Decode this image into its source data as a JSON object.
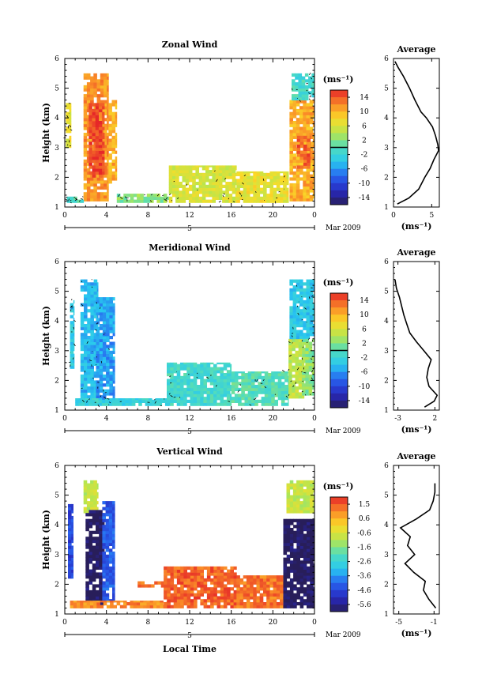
{
  "chart_data": [
    {
      "type": "heatmap",
      "title": "Zonal Wind",
      "ylabel": "Height (km)",
      "xticks": [
        "0",
        "4",
        "8",
        "12",
        "16",
        "20",
        "0"
      ],
      "yticks": [
        "1",
        "2",
        "3",
        "4",
        "5",
        "6"
      ],
      "ylim": [
        1,
        6
      ],
      "xlim": [
        0,
        24
      ],
      "date_label": "5",
      "month_label": "Mar 2009",
      "colorbar": {
        "unit": "(ms⁻¹)",
        "ticks": [
          "14",
          "10",
          "6",
          "2",
          "-2",
          "-6",
          "-10",
          "-14"
        ],
        "range": [
          -14,
          14
        ],
        "bar_value": 0
      },
      "zero_contour": true,
      "coverage": [
        {
          "t0": 0.1,
          "t1": 0.6,
          "z0": 3.0,
          "z1": 4.5,
          "v": 6
        },
        {
          "t0": 1.8,
          "t1": 4.2,
          "z0": 1.2,
          "z1": 5.5,
          "v": 10
        },
        {
          "t0": 2.3,
          "t1": 3.8,
          "z0": 2.0,
          "z1": 4.5,
          "v": 13
        },
        {
          "t0": 4.2,
          "t1": 5.0,
          "z0": 1.8,
          "z1": 4.6,
          "v": 9
        },
        {
          "t0": 0.2,
          "t1": 1.8,
          "z0": 1.15,
          "z1": 1.35,
          "v": 0
        },
        {
          "t0": 5.0,
          "t1": 10.0,
          "z0": 1.15,
          "z1": 1.45,
          "v": 2
        },
        {
          "t0": 10.0,
          "t1": 16.5,
          "z0": 1.15,
          "z1": 2.4,
          "v": 5
        },
        {
          "t0": 16.5,
          "t1": 21.5,
          "z0": 1.15,
          "z1": 2.2,
          "v": 6
        },
        {
          "t0": 21.6,
          "t1": 24.0,
          "z0": 1.2,
          "z1": 4.6,
          "v": 9
        },
        {
          "t0": 22.3,
          "t1": 23.6,
          "z0": 2.3,
          "z1": 3.4,
          "v": 12
        },
        {
          "t0": 21.8,
          "t1": 24.0,
          "z0": 4.6,
          "z1": 5.5,
          "v": -1
        }
      ],
      "profile": {
        "title": "Average",
        "xlabel": "(ms⁻¹)",
        "xticks": [
          "0",
          "5"
        ],
        "xlim": [
          0,
          6
        ],
        "z": [
          1.1,
          1.3,
          1.6,
          2.0,
          2.3,
          2.6,
          2.9,
          3.1,
          3.4,
          3.7,
          4.0,
          4.2,
          4.6,
          5.0,
          5.4,
          5.7,
          5.9
        ],
        "v": [
          0.5,
          2.0,
          3.3,
          4.1,
          4.8,
          5.3,
          5.9,
          5.8,
          5.5,
          5.1,
          4.3,
          3.6,
          2.8,
          2.1,
          1.3,
          0.6,
          0.2
        ]
      }
    },
    {
      "type": "heatmap",
      "title": "Meridional Wind",
      "ylabel": "Height (km)",
      "xticks": [
        "0",
        "4",
        "8",
        "12",
        "16",
        "20",
        "0"
      ],
      "yticks": [
        "1",
        "2",
        "3",
        "4",
        "5",
        "6"
      ],
      "ylim": [
        1,
        6
      ],
      "xlim": [
        0,
        24
      ],
      "date_label": "5",
      "month_label": "Mar 2009",
      "colorbar": {
        "unit": "(ms⁻¹)",
        "ticks": [
          "14",
          "10",
          "6",
          "2",
          "-2",
          "-6",
          "-10",
          "-14"
        ],
        "range": [
          -14,
          14
        ],
        "bar_value": 0
      },
      "zero_contour": true,
      "coverage": [
        {
          "t0": 0.5,
          "t1": 0.9,
          "z0": 2.4,
          "z1": 4.7,
          "v": -3
        },
        {
          "t0": 1.5,
          "t1": 3.2,
          "z0": 1.3,
          "z1": 5.4,
          "v": -4
        },
        {
          "t0": 3.0,
          "t1": 4.8,
          "z0": 1.3,
          "z1": 4.8,
          "v": -5
        },
        {
          "t0": 1.0,
          "t1": 10.0,
          "z0": 1.15,
          "z1": 1.4,
          "v": -2
        },
        {
          "t0": 9.8,
          "t1": 16.0,
          "z0": 1.15,
          "z1": 2.6,
          "v": -1
        },
        {
          "t0": 16.0,
          "t1": 21.5,
          "z0": 1.15,
          "z1": 2.3,
          "v": 0
        },
        {
          "t0": 21.5,
          "t1": 23.0,
          "z0": 1.4,
          "z1": 3.5,
          "v": 4
        },
        {
          "t0": 21.6,
          "t1": 24.0,
          "z0": 3.4,
          "z1": 5.4,
          "v": -3
        },
        {
          "t0": 22.8,
          "t1": 24.0,
          "z0": 1.5,
          "z1": 3.4,
          "v": 2
        }
      ],
      "profile": {
        "title": "Average",
        "xlabel": "(ms⁻¹)",
        "xticks": [
          "-3",
          "2"
        ],
        "xlim": [
          -3.6,
          2.6
        ],
        "z": [
          1.1,
          1.3,
          1.5,
          1.8,
          2.1,
          2.4,
          2.7,
          3.0,
          3.3,
          3.6,
          3.9,
          4.2,
          4.5,
          4.8,
          5.1,
          5.4
        ],
        "v": [
          0.6,
          1.9,
          2.3,
          1.2,
          0.9,
          1.1,
          1.5,
          0.5,
          -0.5,
          -1.4,
          -1.8,
          -2.2,
          -2.5,
          -2.8,
          -3.2,
          -3.4
        ]
      }
    },
    {
      "type": "heatmap",
      "title": "Vertical Wind",
      "ylabel": "Height (km)",
      "xlabel": "Local Time",
      "xticks": [
        "0",
        "4",
        "8",
        "12",
        "16",
        "20",
        "0"
      ],
      "yticks": [
        "1",
        "2",
        "3",
        "4",
        "5",
        "6"
      ],
      "ylim": [
        1,
        6
      ],
      "xlim": [
        0,
        24
      ],
      "date_label": "5",
      "month_label": "Mar 2009",
      "colorbar": {
        "unit": "(ms⁻¹)",
        "ticks": [
          "1.5",
          "0.6",
          "-0.6",
          "-1.6",
          "-2.6",
          "-3.6",
          "-4.6",
          "-5.6"
        ],
        "range": [
          -6.0,
          2.0
        ],
        "bar_value": null
      },
      "zero_contour": false,
      "coverage": [
        {
          "t0": 0.3,
          "t1": 0.8,
          "z0": 2.2,
          "z1": 4.7,
          "v": -4.5
        },
        {
          "t0": 1.8,
          "t1": 3.2,
          "z0": 4.4,
          "z1": 5.5,
          "v": -0.8
        },
        {
          "t0": 2.0,
          "t1": 3.8,
          "z0": 1.3,
          "z1": 4.5,
          "v": -6.0
        },
        {
          "t0": 3.6,
          "t1": 4.8,
          "z0": 1.4,
          "z1": 4.8,
          "v": -4.2
        },
        {
          "t0": 0.5,
          "t1": 10.0,
          "z0": 1.2,
          "z1": 1.45,
          "v": 1.0
        },
        {
          "t0": 7.0,
          "t1": 9.8,
          "z0": 1.9,
          "z1": 2.1,
          "v": 1.2
        },
        {
          "t0": 9.5,
          "t1": 16.5,
          "z0": 1.2,
          "z1": 2.6,
          "v": 1.4
        },
        {
          "t0": 16.5,
          "t1": 21.0,
          "z0": 1.2,
          "z1": 2.3,
          "v": 1.2
        },
        {
          "t0": 21.0,
          "t1": 24.0,
          "z0": 1.2,
          "z1": 4.2,
          "v": -6.0
        },
        {
          "t0": 21.3,
          "t1": 24.0,
          "z0": 4.4,
          "z1": 5.5,
          "v": -0.8
        }
      ],
      "profile": {
        "title": "Average",
        "xlabel": "(ms⁻¹)",
        "xticks": [
          "-5",
          "-1"
        ],
        "xlim": [
          -5.6,
          -0.4
        ],
        "z": [
          1.2,
          1.5,
          1.8,
          2.1,
          2.4,
          2.7,
          3.0,
          3.3,
          3.6,
          3.9,
          4.2,
          4.5,
          4.8,
          5.1,
          5.4
        ],
        "v": [
          -0.8,
          -1.6,
          -2.2,
          -2.0,
          -3.3,
          -4.3,
          -3.2,
          -4.0,
          -3.7,
          -4.8,
          -3.0,
          -1.5,
          -1.1,
          -0.9,
          -0.9
        ]
      }
    }
  ]
}
